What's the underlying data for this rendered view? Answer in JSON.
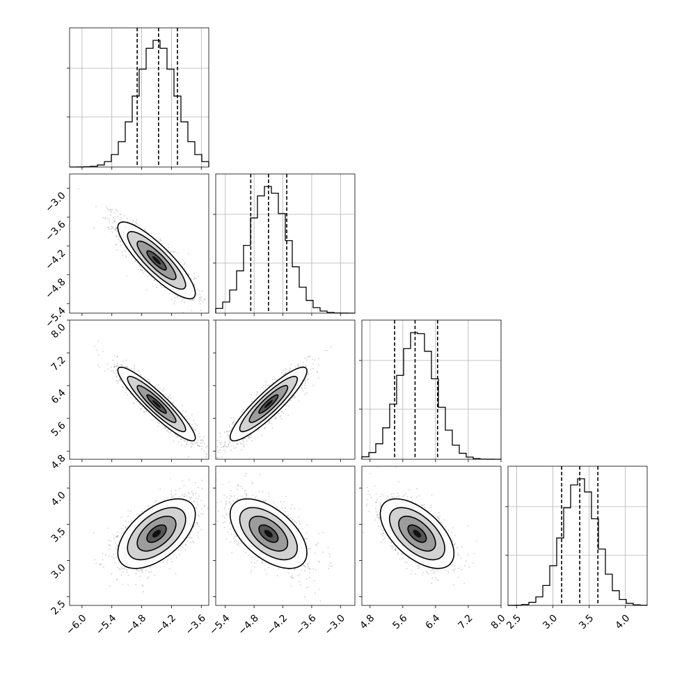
{
  "chart_data": {
    "type": "corner",
    "parameters": [
      {
        "range": [
          -6.25,
          -3.45
        ],
        "ticks": [
          -6.0,
          -5.4,
          -4.8,
          -4.2,
          -3.6
        ],
        "tick_labels": [
          "−6.0",
          "−5.4",
          "−4.8",
          "−4.2",
          "−3.6"
        ],
        "mean": -4.5,
        "sd": 0.39,
        "quantiles": [
          -4.89,
          -4.46,
          -4.08
        ]
      },
      {
        "range": [
          -5.6,
          -2.7
        ],
        "ticks": [
          -5.4,
          -4.8,
          -4.2,
          -3.6,
          -3.0
        ],
        "tick_labels": [
          "−5.4",
          "−4.8",
          "−4.2",
          "−3.6",
          "−3.0"
        ],
        "mean": -4.5,
        "sd": 0.4,
        "quantiles": [
          -4.87,
          -4.5,
          -4.12
        ]
      },
      {
        "range": [
          4.6,
          8.0
        ],
        "ticks": [
          4.8,
          5.6,
          6.4,
          7.2,
          8.0
        ],
        "tick_labels": [
          "4.8",
          "5.6",
          "6.4",
          "7.2",
          "8.0"
        ],
        "mean": 5.95,
        "sd": 0.45,
        "quantiles": [
          5.4,
          5.9,
          6.45
        ]
      },
      {
        "range": [
          2.38,
          4.3
        ],
        "ticks": [
          2.5,
          3.0,
          3.5,
          4.0
        ],
        "tick_labels": [
          "2.5",
          "3.0",
          "3.5",
          "4.0"
        ],
        "mean": 3.37,
        "sd": 0.24,
        "quantiles": [
          3.12,
          3.37,
          3.62
        ]
      }
    ],
    "correlations": {
      "1-0": -0.86,
      "2-0": -0.92,
      "2-1": 0.9,
      "3-0": 0.55,
      "3-1": -0.55,
      "3-2": -0.57
    },
    "contour_levels_sigma": [
      0.5,
      1.0,
      1.5,
      2.0
    ],
    "grid": true,
    "title": "",
    "xlabel": "",
    "ylabel": ""
  }
}
